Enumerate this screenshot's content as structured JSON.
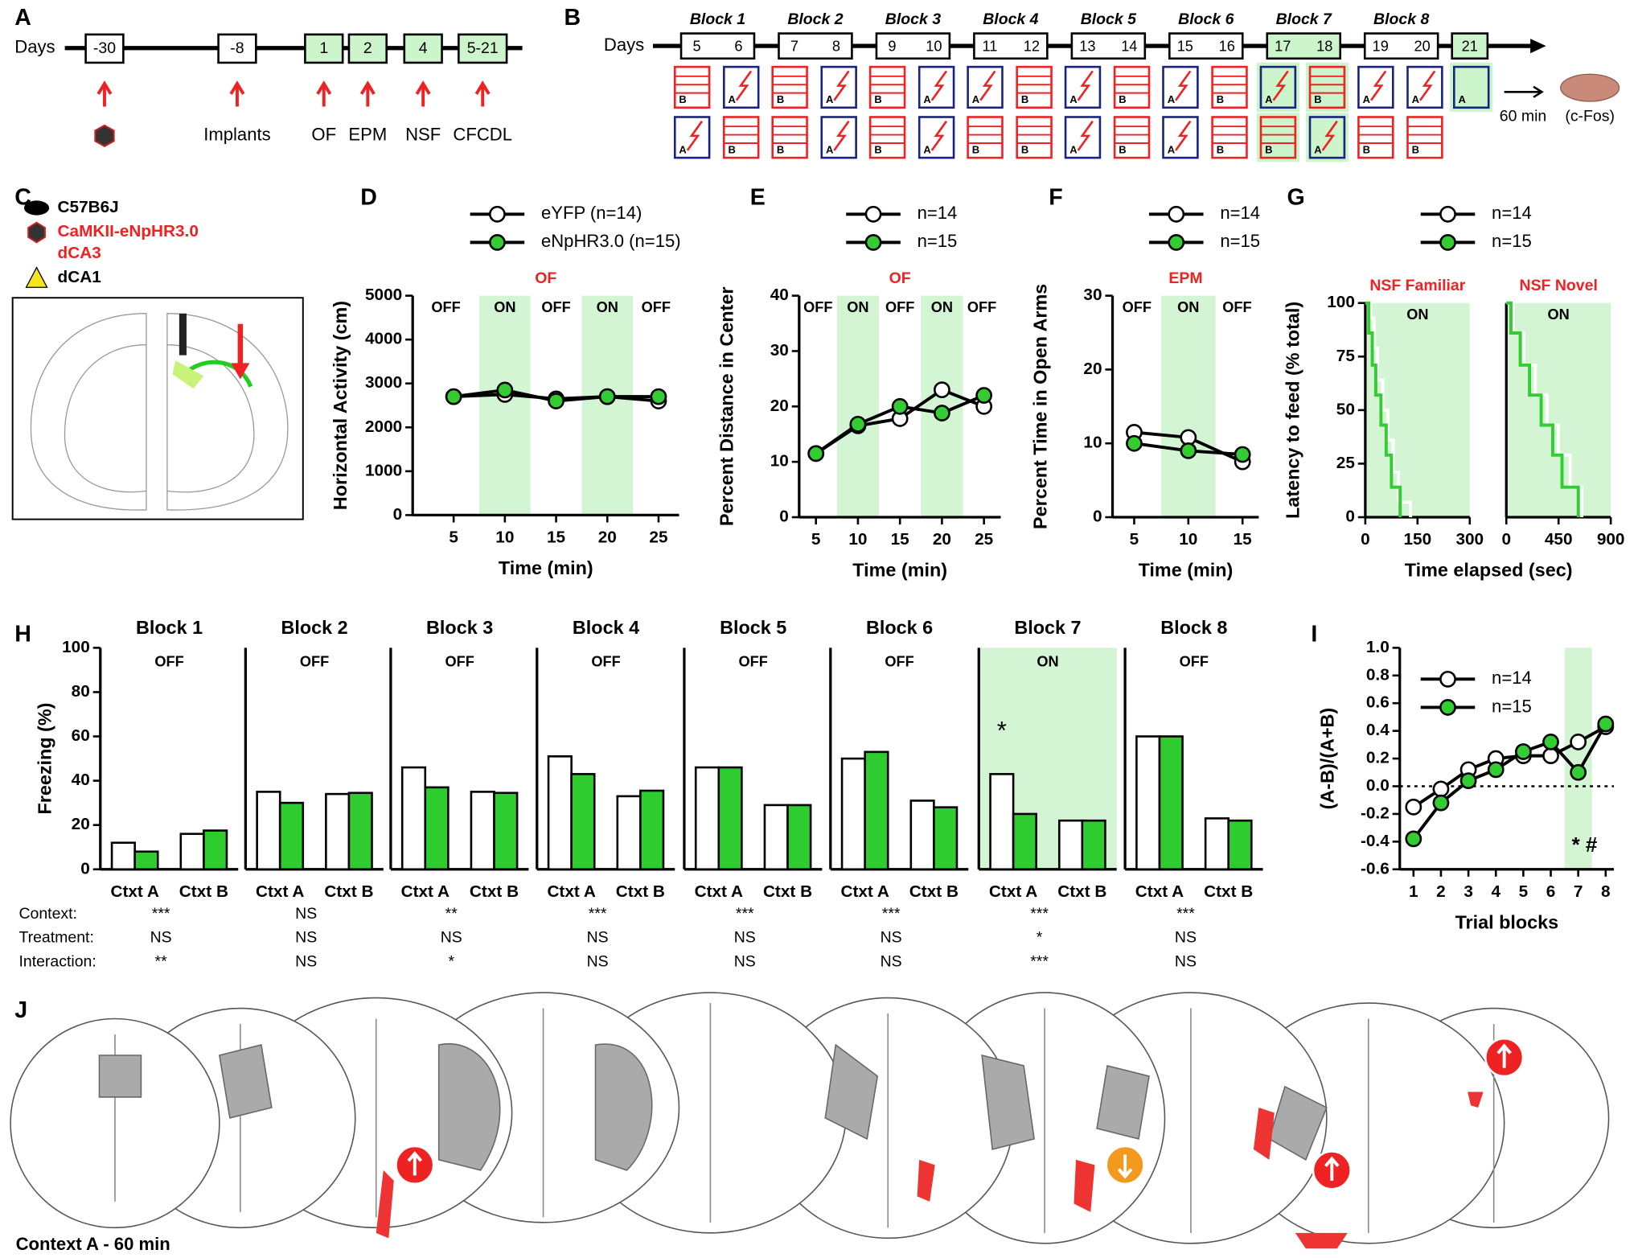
{
  "panel_letters": [
    "A",
    "B",
    "C",
    "D",
    "E",
    "F",
    "G",
    "H",
    "I",
    "J"
  ],
  "timeline_a": {
    "label": "Days",
    "boxes": [
      "-30",
      "-8",
      "1",
      "2",
      "4",
      "5-21"
    ],
    "labels": [
      "Implants",
      "OF",
      "EPM",
      "NSF",
      "CFCDL"
    ]
  },
  "timeline_b": {
    "label": "Days",
    "blocks": [
      "Block 1",
      "Block 2",
      "Block 3",
      "Block 4",
      "Block 5",
      "Block 6",
      "Block 7",
      "Block 8"
    ],
    "days": [
      [
        "5",
        "6"
      ],
      [
        "7",
        "8"
      ],
      [
        "9",
        "10"
      ],
      [
        "11",
        "12"
      ],
      [
        "13",
        "14"
      ],
      [
        "15",
        "16"
      ],
      [
        "17",
        "18"
      ],
      [
        "19",
        "20"
      ]
    ],
    "final_day": "21",
    "row1": [
      "B",
      "A",
      "B",
      "A",
      "B",
      "A",
      "A",
      "B",
      "A",
      "B",
      "A",
      "B",
      "A",
      "B",
      "A",
      "A",
      "A"
    ],
    "row2": [
      "A",
      "B",
      "B",
      "A",
      "B",
      "A",
      "B",
      "B",
      "A",
      "B",
      "A",
      "B",
      "B",
      "A",
      "B",
      "B"
    ],
    "wait": "60 min",
    "endpoint": "(c-Fos)"
  },
  "panel_c": {
    "strain": "C57B6J",
    "virus": "CaMKII-eNpHR3.0",
    "virus_site": "dCA3",
    "fiber_site": "dCA1"
  },
  "chart_data": [
    {
      "type": "line",
      "title": "OF",
      "x": [
        5,
        10,
        15,
        20,
        25
      ],
      "xlim": [
        1,
        27
      ],
      "xticks": [
        5,
        10,
        15,
        20,
        25
      ],
      "ylim": [
        0,
        5000
      ],
      "yticks": [
        0,
        1000,
        2000,
        3000,
        4000,
        5000
      ],
      "xlabel": "Time (min)",
      "ylabel": "Horizontal Activity (cm)",
      "on_periods": [
        [
          7.5,
          12.5
        ],
        [
          17.5,
          22.5
        ]
      ],
      "period_labels": [
        "OFF",
        "ON",
        "OFF",
        "ON",
        "OFF"
      ],
      "series": [
        {
          "name": "eYFP (n=14)",
          "color": "#ffffff",
          "values": [
            2700,
            2750,
            2650,
            2700,
            2600
          ]
        },
        {
          "name": "eNpHR3.0 (n=15)",
          "color": "#33cc33",
          "values": [
            2700,
            2850,
            2600,
            2700,
            2700
          ]
        }
      ]
    },
    {
      "type": "line",
      "title": "OF",
      "x": [
        5,
        10,
        15,
        20,
        25
      ],
      "xlim": [
        3,
        27
      ],
      "xticks": [
        5,
        10,
        15,
        20,
        25
      ],
      "ylim": [
        0,
        40
      ],
      "yticks": [
        0,
        10,
        20,
        30,
        40
      ],
      "xlabel": "Time (min)",
      "ylabel": "Percent Distance in Center",
      "on_periods": [
        [
          7.5,
          12.5
        ],
        [
          17.5,
          22.5
        ]
      ],
      "period_labels": [
        "OFF",
        "ON",
        "OFF",
        "ON",
        "OFF"
      ],
      "series": [
        {
          "name": "n=14",
          "color": "#ffffff",
          "values": [
            11.5,
            16.5,
            17.8,
            23,
            20
          ]
        },
        {
          "name": "n=15",
          "color": "#33cc33",
          "values": [
            11.5,
            16.8,
            20,
            18.8,
            22
          ]
        }
      ]
    },
    {
      "type": "line",
      "title": "EPM",
      "x": [
        5,
        10,
        15
      ],
      "xlim": [
        3,
        16.5
      ],
      "xticks": [
        5,
        10,
        15
      ],
      "ylim": [
        0,
        30
      ],
      "yticks": [
        0,
        10,
        20,
        30
      ],
      "xlabel": "Time (min)",
      "ylabel": "Percent Time in  Open  Arms",
      "on_periods": [
        [
          7.5,
          12.5
        ]
      ],
      "period_labels": [
        "OFF",
        "ON",
        "OFF"
      ],
      "series": [
        {
          "name": "n=14",
          "color": "#ffffff",
          "values": [
            11.5,
            10.8,
            7.5
          ]
        },
        {
          "name": "n=15",
          "color": "#33cc33",
          "values": [
            10,
            9,
            8.5
          ]
        }
      ]
    },
    {
      "type": "line",
      "step": true,
      "title": "NSF Familiar",
      "xlim": [
        0,
        300
      ],
      "xticks": [
        0,
        150,
        300
      ],
      "ylim": [
        0,
        100
      ],
      "yticks": [
        0,
        25,
        50,
        75,
        100
      ],
      "xlabel": "Time elapsed (sec)",
      "ylabel": "Latency to feed (% total)",
      "on_periods": [
        [
          0,
          300
        ]
      ],
      "period_labels": [
        "ON"
      ],
      "series": [
        {
          "name": "n=14",
          "color": "#ffffff",
          "x": [
            0,
            15,
            25,
            35,
            50,
            65,
            80,
            95,
            130
          ],
          "values": [
            100,
            93,
            79,
            64,
            50,
            36,
            21,
            7,
            0
          ]
        },
        {
          "name": "n=15",
          "color": "#33cc33",
          "x": [
            0,
            10,
            20,
            30,
            45,
            60,
            75,
            100
          ],
          "values": [
            100,
            86,
            71,
            57,
            43,
            29,
            14,
            0
          ]
        }
      ]
    },
    {
      "type": "line",
      "step": true,
      "title": "NSF Novel",
      "xlim": [
        0,
        900
      ],
      "xticks": [
        0,
        450,
        900
      ],
      "ylim": [
        0,
        100
      ],
      "on_periods": [
        [
          0,
          900
        ]
      ],
      "period_labels": [
        "ON"
      ],
      "series": [
        {
          "color": "#ffffff",
          "x": [
            0,
            60,
            150,
            250,
            350,
            450,
            550,
            650
          ],
          "values": [
            100,
            86,
            71,
            57,
            43,
            29,
            14,
            0
          ]
        },
        {
          "color": "#33cc33",
          "x": [
            0,
            40,
            120,
            200,
            300,
            400,
            480,
            620
          ],
          "values": [
            100,
            86,
            71,
            57,
            43,
            29,
            14,
            0
          ]
        }
      ]
    },
    {
      "type": "bar",
      "title": "Block 1",
      "annotation": "OFF",
      "categories": [
        "Ctxt A",
        "Ctxt B"
      ],
      "ylim": [
        0,
        100
      ],
      "yticks": [
        0,
        20,
        40,
        60,
        80,
        100
      ],
      "ylabel": "Freezing (%)",
      "series": [
        {
          "color": "#ffffff",
          "values": [
            12,
            16
          ]
        },
        {
          "color": "#2ecc2e",
          "values": [
            8,
            17.5
          ]
        }
      ]
    },
    {
      "type": "bar",
      "title": "Block 2",
      "annotation": "OFF",
      "categories": [
        "Ctxt A",
        "Ctxt B"
      ],
      "ylim": [
        0,
        100
      ],
      "series": [
        {
          "color": "#ffffff",
          "values": [
            35,
            34
          ]
        },
        {
          "color": "#2ecc2e",
          "values": [
            30,
            34.5
          ]
        }
      ]
    },
    {
      "type": "bar",
      "title": "Block 3",
      "annotation": "OFF",
      "categories": [
        "Ctxt A",
        "Ctxt B"
      ],
      "ylim": [
        0,
        100
      ],
      "series": [
        {
          "color": "#ffffff",
          "values": [
            46,
            35
          ]
        },
        {
          "color": "#2ecc2e",
          "values": [
            37,
            34.5
          ]
        }
      ]
    },
    {
      "type": "bar",
      "title": "Block 4",
      "annotation": "OFF",
      "categories": [
        "Ctxt A",
        "Ctxt B"
      ],
      "ylim": [
        0,
        100
      ],
      "series": [
        {
          "color": "#ffffff",
          "values": [
            51,
            33
          ]
        },
        {
          "color": "#2ecc2e",
          "values": [
            43,
            35.5
          ]
        }
      ]
    },
    {
      "type": "bar",
      "title": "Block 5",
      "annotation": "OFF",
      "categories": [
        "Ctxt A",
        "Ctxt B"
      ],
      "ylim": [
        0,
        100
      ],
      "series": [
        {
          "color": "#ffffff",
          "values": [
            46,
            29
          ]
        },
        {
          "color": "#2ecc2e",
          "values": [
            46,
            29
          ]
        }
      ]
    },
    {
      "type": "bar",
      "title": "Block 6",
      "annotation": "OFF",
      "categories": [
        "Ctxt A",
        "Ctxt B"
      ],
      "ylim": [
        0,
        100
      ],
      "series": [
        {
          "color": "#ffffff",
          "values": [
            50,
            31
          ]
        },
        {
          "color": "#2ecc2e",
          "values": [
            53,
            28
          ]
        }
      ]
    },
    {
      "type": "bar",
      "title": "Block 7",
      "annotation": "ON",
      "shaded": true,
      "star": "*",
      "categories": [
        "Ctxt A",
        "Ctxt B"
      ],
      "ylim": [
        0,
        100
      ],
      "series": [
        {
          "color": "#ffffff",
          "values": [
            43,
            22
          ]
        },
        {
          "color": "#2ecc2e",
          "values": [
            25,
            22
          ]
        }
      ]
    },
    {
      "type": "bar",
      "title": "Block 8",
      "annotation": "OFF",
      "categories": [
        "Ctxt A",
        "Ctxt B"
      ],
      "ylim": [
        0,
        100
      ],
      "series": [
        {
          "color": "#ffffff",
          "values": [
            60,
            23
          ]
        },
        {
          "color": "#2ecc2e",
          "values": [
            60,
            22
          ]
        }
      ]
    },
    {
      "type": "line",
      "x": [
        1,
        2,
        3,
        4,
        5,
        6,
        7,
        8
      ],
      "xlim": [
        0.5,
        8.3
      ],
      "xticks": [
        1,
        2,
        3,
        4,
        5,
        6,
        7,
        8
      ],
      "ylim": [
        -0.6,
        1
      ],
      "yticks": [
        -0.6,
        -0.4,
        -0.2,
        {
          "value": 0,
          "label": "0.0"
        },
        0.2,
        0.4,
        0.6,
        0.8,
        {
          "value": 1,
          "label": "1.0"
        }
      ],
      "xlabel": "Trial blocks",
      "ylabel": "(A-B)/(A+B)",
      "reference_line": 0,
      "on_periods": [
        [
          6.5,
          7.5
        ]
      ],
      "annotation": "* #",
      "series": [
        {
          "name": "n=14",
          "color": "#ffffff",
          "values": [
            -0.15,
            -0.02,
            0.12,
            0.2,
            0.22,
            0.22,
            0.32,
            0.43
          ]
        },
        {
          "name": "n=15",
          "color": "#33cc33",
          "values": [
            -0.38,
            -0.12,
            0.04,
            0.12,
            0.25,
            0.32,
            0.1,
            0.45
          ]
        }
      ]
    }
  ],
  "stats": {
    "rows": [
      "Context:",
      "Treatment:",
      "Interaction:"
    ],
    "values": [
      [
        "***",
        "NS",
        "**"
      ],
      [
        "NS",
        "NS",
        "NS"
      ],
      [
        "**",
        "NS",
        "*"
      ],
      [
        "***",
        "NS",
        "NS"
      ],
      [
        "***",
        "NS",
        "NS"
      ],
      [
        "***",
        "NS",
        "NS"
      ],
      [
        "***",
        "*",
        "***"
      ],
      [
        "***",
        "NS",
        "NS"
      ]
    ]
  },
  "panel_j": {
    "caption": "Context A - 60 min"
  }
}
